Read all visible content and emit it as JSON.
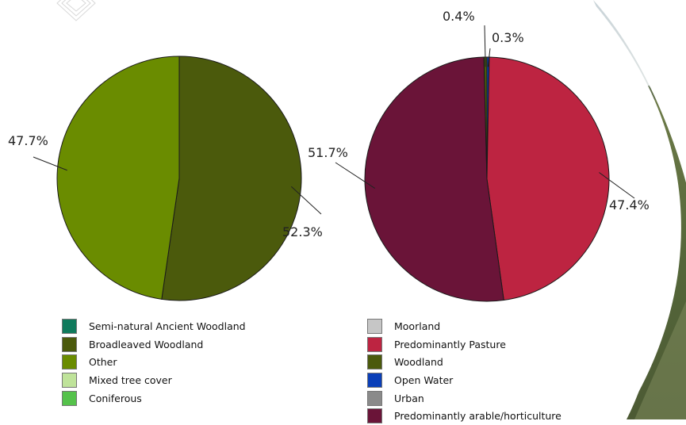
{
  "chart_data": [
    {
      "type": "pie",
      "slices": [
        {
          "category": "Broadleaved Woodland",
          "value": 52.3,
          "label": "52.3%",
          "color": "#4b5a0c"
        },
        {
          "category": "Other",
          "value": 47.7,
          "label": "47.7%",
          "color": "#6a8c00"
        }
      ],
      "legend": {
        "placement": "bottom",
        "items": [
          {
            "label": "Semi-natural Ancient Woodland",
            "color": "#0f7a5c"
          },
          {
            "label": "Broadleaved Woodland",
            "color": "#4b5a0c"
          },
          {
            "label": "Other",
            "color": "#6a8c00"
          },
          {
            "label": "Mixed tree cover",
            "color": "#bfe39a"
          },
          {
            "label": "Coniferous",
            "color": "#55c24b"
          }
        ]
      }
    },
    {
      "type": "pie",
      "slices": [
        {
          "category": "Open Water",
          "value": 0.3,
          "label": "0.3%",
          "color": "#0a3fb8"
        },
        {
          "category": "Predominantly Pasture",
          "value": 47.4,
          "label": "47.4%",
          "color": "#bd2441"
        },
        {
          "category": "Predominantly arable/horticulture",
          "value": 51.7,
          "label": "51.7%",
          "color": "#6a1438"
        },
        {
          "category": "Woodland",
          "value": 0.4,
          "label": "0.4%",
          "color": "#4b5a0c"
        }
      ],
      "legend": {
        "placement": "bottom",
        "items": [
          {
            "label": "Moorland",
            "color": "#c6c6c6"
          },
          {
            "label": "Predominantly Pasture",
            "color": "#bd2441"
          },
          {
            "label": "Woodland",
            "color": "#4b5a0c"
          },
          {
            "label": "Open Water",
            "color": "#0a3fb8"
          },
          {
            "label": "Urban",
            "color": "#8a8a8a"
          },
          {
            "label": "Predominantly arable/horticulture",
            "color": "#6a1438"
          }
        ]
      }
    }
  ]
}
